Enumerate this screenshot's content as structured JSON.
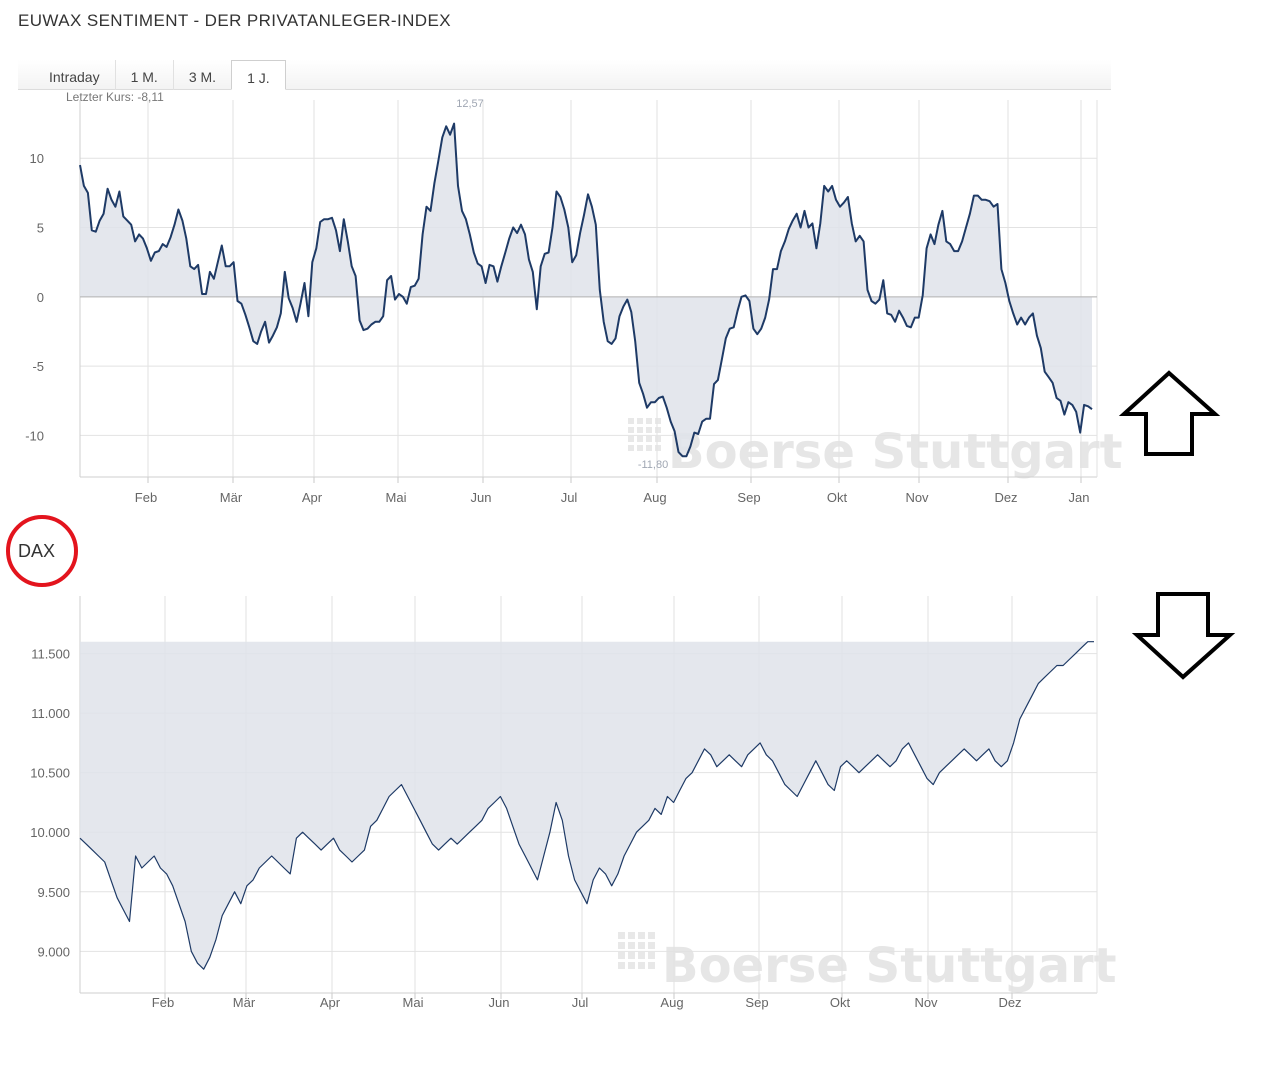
{
  "title": "EUWAX SENTIMENT - DER PRIVATANLEGER-INDEX",
  "tabs": [
    {
      "label": "Intraday",
      "active": false
    },
    {
      "label": "1 M.",
      "active": false
    },
    {
      "label": "3 M.",
      "active": false
    },
    {
      "label": "1 J.",
      "active": true
    }
  ],
  "last_price_text": "Letzter Kurs: -8,11",
  "second_chart_label": "DAX",
  "watermark": "Boerse Stuttgart",
  "colors": {
    "line": "#1e3a66",
    "fill": "#dfe3ea",
    "grid": "#dddddd",
    "annotation_circle": "#e3141d"
  },
  "icons": [
    "arrow-up-outline-icon",
    "arrow-down-outline-icon",
    "red-circle-annotation"
  ],
  "chart_data": [
    {
      "type": "area",
      "months": [
        "Feb",
        "Mär",
        "Apr",
        "Mai",
        "Jun",
        "Jul",
        "Aug",
        "Sep",
        "Okt",
        "Nov",
        "Dez",
        "Jan"
      ],
      "y_ticks": [
        "10",
        "5",
        "0",
        "-5",
        "-10"
      ],
      "y_tick_values": [
        10,
        5,
        0,
        -5,
        -10
      ],
      "ylim": [
        -13,
        14.2
      ],
      "annotations": [
        {
          "label": "12,57",
          "value": 12.57
        },
        {
          "label": "-11,80",
          "value": -11.8
        }
      ],
      "grid": true,
      "values": [
        9.5,
        8.0,
        7.5,
        4.8,
        4.7,
        5.5,
        6.0,
        7.8,
        7.0,
        6.5,
        7.6,
        5.8,
        5.5,
        5.2,
        4.0,
        4.5,
        4.2,
        3.5,
        2.6,
        3.2,
        3.3,
        3.8,
        3.6,
        4.3,
        5.2,
        6.3,
        5.5,
        4.2,
        2.2,
        2.0,
        2.3,
        0.2,
        0.2,
        1.8,
        1.3,
        2.5,
        3.7,
        2.2,
        2.2,
        2.5,
        -0.3,
        -0.5,
        -1.3,
        -2.2,
        -3.2,
        -3.4,
        -2.5,
        -1.8,
        -3.3,
        -2.8,
        -2.2,
        -1.2,
        1.8,
        -0.1,
        -0.8,
        -1.8,
        -0.5,
        1.0,
        -1.4,
        2.5,
        3.5,
        5.4,
        5.6,
        5.6,
        5.7,
        4.8,
        3.3,
        5.6,
        4.0,
        2.2,
        1.5,
        -1.7,
        -2.4,
        -2.3,
        -2.0,
        -1.8,
        -1.8,
        -1.4,
        1.2,
        1.5,
        -0.2,
        0.2,
        0.0,
        -0.5,
        0.7,
        0.8,
        1.3,
        4.5,
        6.5,
        6.2,
        8.2,
        9.8,
        11.5,
        12.3,
        11.7,
        12.5,
        8.0,
        6.2,
        5.6,
        4.5,
        3.2,
        2.4,
        2.2,
        1.0,
        2.3,
        2.2,
        1.1,
        2.2,
        3.2,
        4.2,
        5.0,
        4.6,
        5.2,
        4.5,
        2.7,
        1.8,
        -0.9,
        2.2,
        3.1,
        3.2,
        5.0,
        7.6,
        7.2,
        6.3,
        5.0,
        2.5,
        3.0,
        4.6,
        5.9,
        7.4,
        6.5,
        5.2,
        0.5,
        -1.8,
        -3.2,
        -3.4,
        -3.0,
        -1.4,
        -0.7,
        -0.2,
        -1.1,
        -3.2,
        -6.2,
        -7.0,
        -8.0,
        -7.6,
        -7.6,
        -7.3,
        -7.2,
        -8.0,
        -9.0,
        -9.7,
        -11.2,
        -11.5,
        -11.5,
        -10.8,
        -9.8,
        -9.9,
        -9.0,
        -8.8,
        -8.8,
        -6.3,
        -6.0,
        -4.5,
        -3.0,
        -2.3,
        -2.2,
        -1.0,
        0.0,
        0.1,
        -0.3,
        -2.3,
        -2.7,
        -2.3,
        -1.5,
        -0.2,
        2.0,
        2.0,
        3.3,
        4.0,
        4.9,
        5.5,
        6.0,
        5.0,
        6.2,
        5.0,
        5.3,
        3.5,
        5.3,
        8.0,
        7.6,
        8.0,
        7.0,
        6.5,
        6.8,
        7.2,
        5.3,
        4.0,
        4.4,
        4.0,
        0.5,
        -0.3,
        -0.5,
        -0.2,
        1.2,
        -1.2,
        -1.3,
        -1.8,
        -1.0,
        -1.5,
        -2.1,
        -2.2,
        -1.5,
        -1.5,
        0.1,
        3.5,
        4.5,
        3.8,
        5.2,
        6.2,
        4.0,
        3.8,
        3.3,
        3.3,
        4.0,
        5.0,
        6.0,
        7.3,
        7.3,
        7.0,
        7.0,
        6.9,
        6.5,
        6.7,
        2.0,
        1.0,
        -0.3,
        -1.2,
        -2.0,
        -1.5,
        -2.0,
        -1.5,
        -1.2,
        -2.8,
        -3.7,
        -5.4,
        -5.8,
        -6.2,
        -7.3,
        -7.5,
        -8.5,
        -7.6,
        -7.8,
        -8.3,
        -9.8,
        -7.8,
        -7.9,
        -8.11
      ]
    },
    {
      "type": "area",
      "months": [
        "Feb",
        "Mär",
        "Apr",
        "Mai",
        "Jun",
        "Jul",
        "Aug",
        "Sep",
        "Okt",
        "Nov",
        "Dez"
      ],
      "y_ticks": [
        "11.500",
        "11.000",
        "10.500",
        "10.000",
        "9.500",
        "9.000"
      ],
      "y_tick_values": [
        11500,
        11000,
        10500,
        10000,
        9500,
        9000
      ],
      "ylim": [
        8650,
        11950
      ],
      "grid": true,
      "values": [
        9950,
        9900,
        9850,
        9800,
        9750,
        9600,
        9450,
        9350,
        9250,
        9800,
        9700,
        9750,
        9800,
        9700,
        9650,
        9550,
        9400,
        9250,
        9000,
        8900,
        8850,
        8950,
        9100,
        9300,
        9400,
        9500,
        9400,
        9550,
        9600,
        9700,
        9750,
        9800,
        9750,
        9700,
        9650,
        9950,
        10000,
        9950,
        9900,
        9850,
        9900,
        9950,
        9850,
        9800,
        9750,
        9800,
        9850,
        10050,
        10100,
        10200,
        10300,
        10350,
        10400,
        10300,
        10200,
        10100,
        10000,
        9900,
        9850,
        9900,
        9950,
        9900,
        9950,
        10000,
        10050,
        10100,
        10200,
        10250,
        10300,
        10200,
        10050,
        9900,
        9800,
        9700,
        9600,
        9800,
        10000,
        10250,
        10100,
        9800,
        9600,
        9500,
        9400,
        9600,
        9700,
        9650,
        9550,
        9650,
        9800,
        9900,
        10000,
        10050,
        10100,
        10200,
        10150,
        10300,
        10250,
        10350,
        10450,
        10500,
        10600,
        10700,
        10650,
        10550,
        10600,
        10650,
        10600,
        10550,
        10650,
        10700,
        10750,
        10650,
        10600,
        10500,
        10400,
        10350,
        10300,
        10400,
        10500,
        10600,
        10500,
        10400,
        10350,
        10550,
        10600,
        10550,
        10500,
        10550,
        10600,
        10650,
        10600,
        10550,
        10600,
        10700,
        10750,
        10650,
        10550,
        10450,
        10400,
        10500,
        10550,
        10600,
        10650,
        10700,
        10650,
        10600,
        10650,
        10700,
        10600,
        10550,
        10600,
        10750,
        10950,
        11050,
        11150,
        11250,
        11300,
        11350,
        11400,
        11400,
        11450,
        11500,
        11550,
        11600,
        11600
      ]
    }
  ]
}
